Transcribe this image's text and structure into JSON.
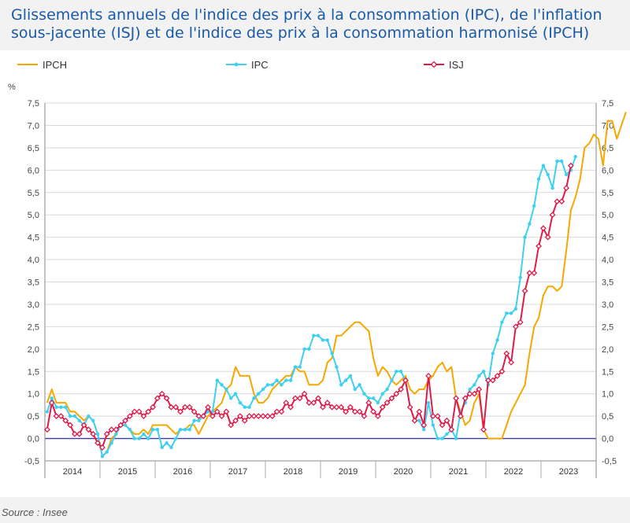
{
  "title": "Glissements annuels de l'indice des prix à la consommation (IPC), de l'inflation sous-jacente (ISJ) et de l'indice des prix à la consommation harmonisé (IPCH)",
  "source": "Source : Insee",
  "chart_data": {
    "type": "line",
    "title": "Glissements annuels de l'indice des prix à la consommation (IPC), de l'inflation sous-jacente (ISJ) et de l'indice des prix à la consommation harmonisé (IPCH)",
    "ylabel": "%",
    "xlabel": "",
    "ylim": [
      -0.5,
      7.5
    ],
    "yticks": [
      "-0,5",
      "0,0",
      "0,5",
      "1,0",
      "1,5",
      "2,0",
      "2,5",
      "3,0",
      "3,5",
      "4,0",
      "4,5",
      "5,0",
      "5,5",
      "6,0",
      "6,5",
      "7,0",
      "7,5"
    ],
    "years": [
      "2014",
      "2015",
      "2016",
      "2017",
      "2018",
      "2019",
      "2020",
      "2021",
      "2022",
      "2023"
    ],
    "grid": "horizontal",
    "legend": "top",
    "start_month": "2014-01",
    "series": [
      {
        "name": "IPCH",
        "color": "#f5a800",
        "marker": "none",
        "values": [
          0.8,
          1.1,
          0.8,
          0.8,
          0.8,
          0.6,
          0.6,
          0.5,
          0.4,
          0.5,
          0.4,
          0.1,
          -0.4,
          -0.3,
          0.0,
          0.1,
          0.3,
          0.3,
          0.2,
          0.1,
          0.1,
          0.2,
          0.1,
          0.3,
          0.3,
          0.3,
          0.3,
          0.2,
          0.1,
          0.2,
          0.2,
          0.3,
          0.3,
          0.1,
          0.3,
          0.5,
          0.6,
          0.7,
          0.8,
          1.1,
          1.2,
          1.6,
          1.4,
          1.4,
          1.4,
          1.0,
          0.8,
          0.8,
          0.9,
          1.1,
          1.2,
          1.3,
          1.4,
          1.4,
          1.6,
          1.5,
          1.5,
          1.2,
          1.2,
          1.2,
          1.3,
          1.7,
          1.8,
          2.3,
          2.3,
          2.4,
          2.5,
          2.6,
          2.6,
          2.5,
          2.4,
          1.8,
          1.4,
          1.6,
          1.5,
          1.3,
          1.2,
          1.3,
          1.4,
          1.1,
          1.0,
          1.1,
          1.1,
          1.3,
          1.4,
          1.6,
          1.7,
          1.5,
          1.6,
          0.9,
          0.6,
          0.3,
          0.4,
          0.8,
          1.0,
          0.2,
          0.0,
          0.0,
          0.0,
          0.0,
          0.3,
          0.6,
          0.8,
          1.0,
          1.2,
          1.9,
          2.5,
          2.7,
          3.2,
          3.4,
          3.4,
          3.3,
          3.4,
          4.2,
          5.1,
          5.4,
          5.8,
          6.5,
          6.6,
          6.8,
          6.7,
          6.1,
          7.1,
          7.1,
          6.7,
          7.0,
          7.3
        ]
      },
      {
        "name": "IPC",
        "color": "#3fd0f0",
        "marker": "dot",
        "values": [
          0.6,
          0.9,
          0.7,
          0.7,
          0.7,
          0.5,
          0.5,
          0.4,
          0.3,
          0.5,
          0.4,
          0.1,
          -0.4,
          -0.3,
          -0.1,
          0.1,
          0.3,
          0.3,
          0.2,
          0.0,
          0.0,
          0.1,
          0.0,
          0.2,
          0.2,
          -0.2,
          -0.1,
          -0.2,
          0.0,
          0.2,
          0.2,
          0.2,
          0.4,
          0.4,
          0.5,
          0.6,
          0.6,
          1.3,
          1.2,
          1.1,
          0.9,
          1.0,
          0.8,
          0.7,
          0.7,
          0.9,
          1.0,
          1.1,
          1.2,
          1.2,
          1.3,
          1.2,
          1.3,
          1.3,
          1.6,
          1.6,
          2.0,
          2.0,
          2.3,
          2.3,
          2.2,
          2.2,
          1.9,
          1.6,
          1.2,
          1.3,
          1.4,
          1.1,
          1.2,
          1.0,
          0.9,
          0.9,
          0.8,
          1.0,
          1.1,
          1.3,
          1.5,
          1.5,
          1.3,
          0.7,
          0.4,
          0.4,
          0.2,
          0.8,
          0.3,
          0.0,
          0.0,
          0.1,
          0.2,
          0.0,
          0.6,
          0.8,
          1.1,
          1.2,
          1.4,
          1.5,
          1.2,
          1.9,
          2.2,
          2.6,
          2.8,
          2.8,
          2.9,
          3.6,
          4.5,
          4.8,
          5.2,
          5.8,
          6.1,
          5.9,
          5.6,
          6.2,
          6.2,
          5.9,
          6.0,
          6.3
        ]
      },
      {
        "name": "ISJ",
        "color": "#dd1c4a",
        "marker": "diamond",
        "values": [
          0.2,
          0.8,
          0.5,
          0.5,
          0.4,
          0.3,
          0.1,
          0.1,
          0.3,
          0.2,
          0.1,
          -0.1,
          -0.2,
          0.1,
          0.2,
          0.2,
          0.3,
          0.4,
          0.5,
          0.6,
          0.6,
          0.5,
          0.6,
          0.7,
          0.9,
          1.0,
          0.9,
          0.7,
          0.7,
          0.6,
          0.7,
          0.7,
          0.6,
          0.5,
          0.5,
          0.7,
          0.5,
          0.6,
          0.5,
          0.6,
          0.3,
          0.4,
          0.5,
          0.4,
          0.5,
          0.5,
          0.5,
          0.5,
          0.5,
          0.5,
          0.6,
          0.6,
          0.8,
          0.7,
          0.9,
          0.9,
          1.0,
          0.8,
          0.8,
          0.9,
          0.7,
          0.8,
          0.7,
          0.7,
          0.7,
          0.6,
          0.7,
          0.6,
          0.6,
          0.5,
          0.8,
          0.6,
          0.5,
          0.7,
          0.8,
          0.9,
          1.0,
          1.1,
          1.3,
          0.7,
          0.4,
          0.6,
          0.3,
          1.4,
          0.5,
          0.5,
          0.3,
          0.4,
          0.2,
          0.9,
          0.5,
          0.9,
          1.0,
          1.0,
          1.1,
          0.2,
          1.3,
          1.3,
          1.4,
          1.5,
          1.9,
          1.7,
          2.5,
          2.6,
          3.3,
          3.7,
          3.7,
          4.3,
          4.7,
          4.5,
          5.0,
          5.3,
          5.3,
          5.6,
          6.1
        ]
      }
    ]
  }
}
